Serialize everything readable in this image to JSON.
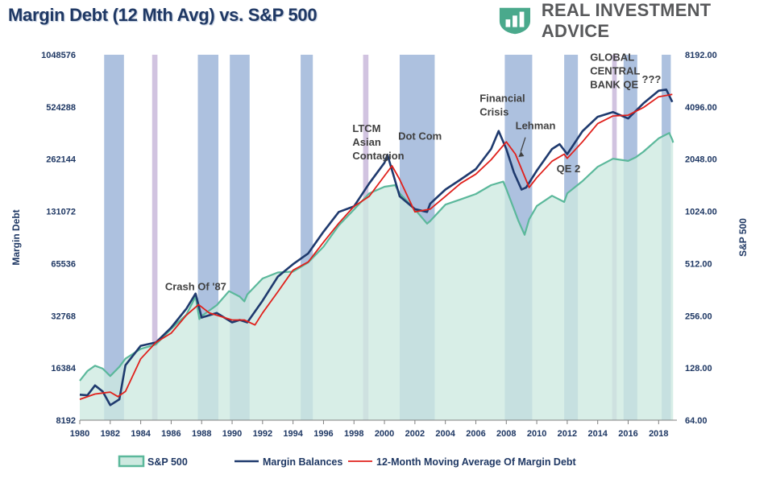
{
  "title": "Margin Debt (12 Mth Avg) vs. S&P 500",
  "brand": {
    "name": "REAL INVESTMENT ADVICE",
    "logo_icon": "chart-bars-icon",
    "color": "#58595b",
    "logo_color": "#4aa98c"
  },
  "colors": {
    "sp500_fill": "#cde9e0",
    "sp500_line": "#5bb89b",
    "margin": "#1f3a6e",
    "ma": "#e0201b",
    "recession": "#9fb6d9",
    "event": "#c9b8da",
    "axis_text": "#1f3864"
  },
  "chart_data": {
    "type": "line",
    "xlim": [
      1980,
      2019.2
    ],
    "x_ticks": [
      "1980",
      "1982",
      "1984",
      "1986",
      "1988",
      "1990",
      "1992",
      "1994",
      "1996",
      "1998",
      "2000",
      "2002",
      "2004",
      "2006",
      "2008",
      "2010",
      "2012",
      "2014",
      "2016",
      "2018"
    ],
    "y_left": {
      "label": "Margin Debt",
      "scale": "log2",
      "ticks": [
        "8192",
        "16384",
        "32768",
        "65536",
        "131072",
        "262144",
        "524288",
        "1048576"
      ],
      "ylim": [
        8192,
        1048576
      ]
    },
    "y_right": {
      "label": "S&P 500",
      "scale": "log2",
      "ticks": [
        "64.00",
        "128.00",
        "256.00",
        "512.00",
        "1024.00",
        "2048.00",
        "4096.00",
        "8192.00"
      ],
      "ylim": [
        64,
        8192
      ]
    },
    "series": [
      {
        "name": "S&P 500",
        "axis": "right",
        "style": "area",
        "x": [
          1980,
          1980.5,
          1981,
          1981.5,
          1982,
          1982.6,
          1983,
          1984,
          1985,
          1986,
          1987,
          1987.6,
          1987.85,
          1988,
          1989,
          1989.8,
          1990.5,
          1990.8,
          1991,
          1992,
          1993,
          1994,
          1995,
          1996,
          1997,
          1998,
          1999,
          2000,
          2000.7,
          2001,
          2002,
          2002.8,
          2003,
          2004,
          2005,
          2006,
          2007,
          2007.8,
          2008,
          2008.8,
          2009.2,
          2009.5,
          2010,
          2011,
          2011.8,
          2012,
          2013,
          2014,
          2015,
          2016,
          2016.5,
          2017,
          2018,
          2018.7,
          2018.9,
          2018.95
        ],
        "y": [
          108,
          123,
          132,
          127,
          115,
          130,
          145,
          165,
          175,
          215,
          260,
          330,
          245,
          255,
          295,
          355,
          330,
          310,
          340,
          420,
          455,
          460,
          520,
          640,
          850,
          1050,
          1300,
          1420,
          1450,
          1300,
          1050,
          870,
          900,
          1120,
          1200,
          1290,
          1450,
          1520,
          1380,
          900,
          750,
          920,
          1100,
          1260,
          1160,
          1300,
          1530,
          1850,
          2060,
          2000,
          2100,
          2260,
          2700,
          2900,
          2650,
          2550
        ]
      },
      {
        "name": "Margin Balances",
        "axis": "left",
        "style": "line",
        "x": [
          1980,
          1980.5,
          1981,
          1981.5,
          1982,
          1982.6,
          1983,
          1984,
          1985,
          1986,
          1987,
          1987.6,
          1988,
          1989,
          1990,
          1990.5,
          1991,
          1992,
          1993,
          1994,
          1995,
          1996,
          1997,
          1998,
          1999,
          2000,
          2000.2,
          2001,
          2002,
          2002.8,
          2003,
          2004,
          2005,
          2006,
          2007,
          2007.5,
          2008,
          2008.5,
          2009,
          2009.3,
          2010,
          2011,
          2011.5,
          2012,
          2013,
          2014,
          2015,
          2016,
          2017,
          2018,
          2018.5,
          2018.9
        ],
        "y": [
          11500,
          11400,
          13000,
          12000,
          10000,
          10800,
          17000,
          22000,
          23000,
          28000,
          36000,
          44000,
          32000,
          34000,
          30000,
          31000,
          30000,
          40000,
          55000,
          65000,
          75000,
          100000,
          130000,
          140000,
          190000,
          250000,
          278000,
          160000,
          135000,
          130000,
          145000,
          175000,
          200000,
          230000,
          300000,
          381000,
          300000,
          220000,
          175000,
          180000,
          225000,
          300000,
          320000,
          280000,
          380000,
          460000,
          490000,
          450000,
          550000,
          650000,
          660000,
          560000
        ]
      },
      {
        "name": "12-Month Moving Average Of Margin Debt",
        "axis": "left",
        "style": "line",
        "x": [
          1980,
          1981,
          1982,
          1982.5,
          1983,
          1984,
          1985,
          1986,
          1987,
          1987.8,
          1988.5,
          1989,
          1990,
          1990.8,
          1991.5,
          1992,
          1993,
          1994,
          1995,
          1996,
          1997,
          1998,
          1999,
          2000,
          2000.5,
          2001,
          2002,
          2003,
          2004,
          2005,
          2006,
          2007,
          2008,
          2008.6,
          2009.5,
          2010,
          2011,
          2011.8,
          2012,
          2013,
          2014,
          2015,
          2016,
          2017,
          2018,
          2018.9
        ],
        "y": [
          10800,
          11600,
          11900,
          11200,
          12000,
          18500,
          23000,
          26000,
          33000,
          38000,
          34000,
          33000,
          31000,
          31000,
          29000,
          34000,
          45000,
          60000,
          67000,
          87000,
          112000,
          140000,
          160000,
          210000,
          240000,
          200000,
          130000,
          135000,
          160000,
          190000,
          215000,
          260000,
          330000,
          280000,
          180000,
          205000,
          255000,
          280000,
          265000,
          330000,
          420000,
          465000,
          470000,
          520000,
          600000,
          620000
        ]
      }
    ],
    "shaded_periods": [
      {
        "kind": "recession",
        "from": 1981.6,
        "to": 1982.9
      },
      {
        "kind": "event",
        "from": 1984.75,
        "to": 1985.1
      },
      {
        "kind": "recession",
        "from": 1987.75,
        "to": 1989.1
      },
      {
        "kind": "recession",
        "from": 1989.85,
        "to": 1991.15
      },
      {
        "kind": "recession",
        "from": 1994.5,
        "to": 1995.3
      },
      {
        "kind": "event",
        "from": 1998.6,
        "to": 1998.95
      },
      {
        "kind": "recession",
        "from": 2001.0,
        "to": 2003.3
      },
      {
        "kind": "recession",
        "from": 2007.9,
        "to": 2009.7
      },
      {
        "kind": "recession",
        "from": 2011.8,
        "to": 2012.7
      },
      {
        "kind": "event",
        "from": 2014.95,
        "to": 2015.25
      },
      {
        "kind": "recession",
        "from": 2015.7,
        "to": 2016.6
      },
      {
        "kind": "recession",
        "from": 2018.2,
        "to": 2018.8
      }
    ],
    "annotations": [
      {
        "text": "Crash Of '87",
        "x": 1985.6,
        "y_left": 46000
      },
      {
        "lines": [
          "LTCM",
          "Asian",
          "Contagion"
        ],
        "x": 1997.9,
        "y_left": 375000
      },
      {
        "text": "Dot Com",
        "x": 2000.9,
        "y_left": 340000
      },
      {
        "lines": [
          "Financial",
          "Crisis"
        ],
        "x": 2006.25,
        "y_left": 560000
      },
      {
        "text": "Lehman",
        "x": 2008.6,
        "y_left": 390000
      },
      {
        "text": "QE 2",
        "x": 2011.3,
        "y_left": 220000
      },
      {
        "lines": [
          "GLOBAL",
          "CENTRAL",
          "BANK QE"
        ],
        "x": 2013.5,
        "y_left": 970000
      },
      {
        "text": "???",
        "x": 2016.9,
        "y_left": 720000
      }
    ],
    "legend": {
      "position": "bottom",
      "items": [
        {
          "label": "S&P 500",
          "symbol": "area"
        },
        {
          "label": "Margin Balances",
          "symbol": "line"
        },
        {
          "label": "12-Month Moving Average Of Margin Debt",
          "symbol": "line"
        }
      ]
    }
  }
}
